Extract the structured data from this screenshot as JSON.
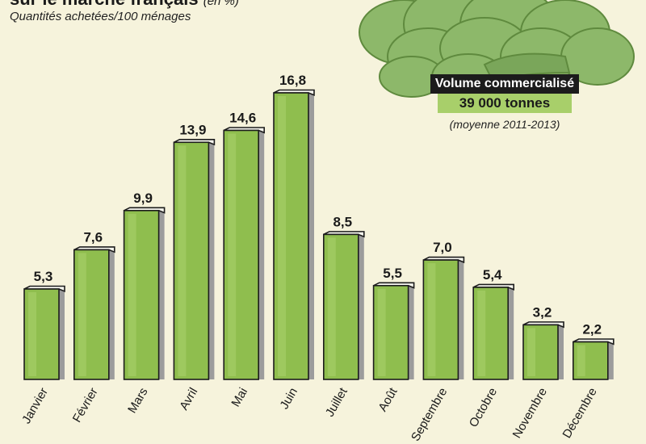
{
  "header": {
    "title": "sur le marché français",
    "title_unit": "(en %)",
    "subtitle": "Quantités achetées/100 ménages"
  },
  "callout": {
    "label": "Volume commercialisé",
    "value": "39 000 tonnes",
    "period": "(moyenne 2011-2013)"
  },
  "colors": {
    "background": "#f6f3dc",
    "bar": "#8fbe4e",
    "bar_highlight": "#a9d16b",
    "bar_outline": "#1c1c1c",
    "bar_shadow": "#9c9c9c",
    "callout_bg": "#1c1c1c",
    "callout_value_bg": "#a8cf6a",
    "artichoke": "#8db86a"
  },
  "icons": {
    "decoration": "artichoke-illustration"
  },
  "chart_data": {
    "type": "bar",
    "categories": [
      "Janvier",
      "Février",
      "Mars",
      "Avril",
      "Mai",
      "Juin",
      "Juillet",
      "Août",
      "Septembre",
      "Octobre",
      "Novembre",
      "Décembre"
    ],
    "values": [
      5.3,
      7.6,
      9.9,
      13.9,
      14.6,
      16.8,
      8.5,
      5.5,
      7.0,
      5.4,
      3.2,
      2.2
    ],
    "value_labels": [
      "5,3",
      "7,6",
      "9,9",
      "13,9",
      "14,6",
      "16,8",
      "8,5",
      "5,5",
      "7,0",
      "5,4",
      "3,2",
      "2,2"
    ],
    "title": "sur le marché français",
    "xlabel": "",
    "ylabel": "",
    "ylim": [
      0,
      16.8
    ],
    "grid": false
  }
}
